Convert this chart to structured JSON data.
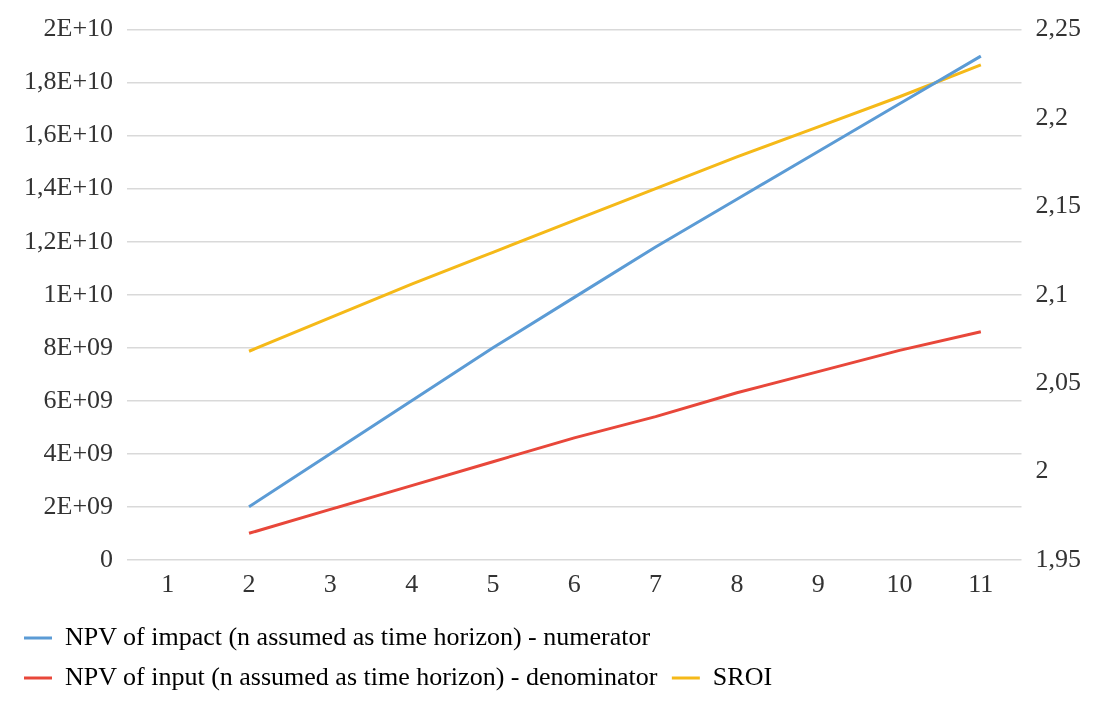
{
  "chart_data": {
    "type": "line",
    "categories": [
      "1",
      "2",
      "3",
      "4",
      "5",
      "6",
      "7",
      "8",
      "9",
      "10",
      "11"
    ],
    "series": [
      {
        "name": "NPV of impact (n assumed as time horizon) - numerator",
        "color": "#5b9bd5",
        "values": [
          null,
          2000000000.0,
          4000000000.0,
          6000000000.0,
          8000000000.0,
          9900000000.0,
          11800000000.0,
          13600000000.0,
          15400000000.0,
          17200000000.0,
          19000000000.0
        ]
      },
      {
        "name": "NPV of input (n assumed as time horizon) - denominator",
        "color": "#e8473a",
        "values": [
          null,
          1000000000.0,
          1900000000.0,
          2800000000.0,
          3700000000.0,
          4600000000.0,
          5400000000.0,
          6300000000.0,
          7100000000.0,
          7900000000.0,
          8600000000.0
        ]
      },
      {
        "name": "SROI",
        "color": "#f5b918",
        "axis": "y2",
        "values": [
          null,
          2.068,
          2.087,
          2.106,
          2.124,
          2.142,
          2.16,
          2.178,
          2.195,
          2.212,
          2.23
        ]
      }
    ],
    "ylim": [
      0,
      20000000000.0
    ],
    "yticks": [
      0,
      {
        "value": 2000000000.0,
        "label": "2E+09"
      },
      {
        "value": 4000000000.0,
        "label": "4E+09"
      },
      {
        "value": 6000000000.0,
        "label": "6E+09"
      },
      {
        "value": 8000000000.0,
        "label": "8E+09"
      },
      {
        "value": 10000000000.0,
        "label": "1E+10"
      },
      {
        "value": 12000000000.0,
        "label": "1,2E+10"
      },
      {
        "value": 14000000000.0,
        "label": "1,4E+10"
      },
      {
        "value": 16000000000.0,
        "label": "1,6E+10"
      },
      {
        "value": 18000000000.0,
        "label": "1,8E+10"
      },
      {
        "value": 20000000000.0,
        "label": "2E+10"
      }
    ],
    "y2lim": [
      1.95,
      2.25
    ],
    "y2ticks": [
      {
        "value": 1.95,
        "label": "1,95"
      },
      2,
      {
        "value": 2.05,
        "label": "2,05"
      },
      {
        "value": 2.1,
        "label": "2,1"
      },
      {
        "value": 2.15,
        "label": "2,15"
      },
      {
        "value": 2.2,
        "label": "2,2"
      },
      {
        "value": 2.25,
        "label": "2,25"
      }
    ],
    "grid": "y",
    "legend": "bottom",
    "marker": "none",
    "line_style": "solid"
  }
}
